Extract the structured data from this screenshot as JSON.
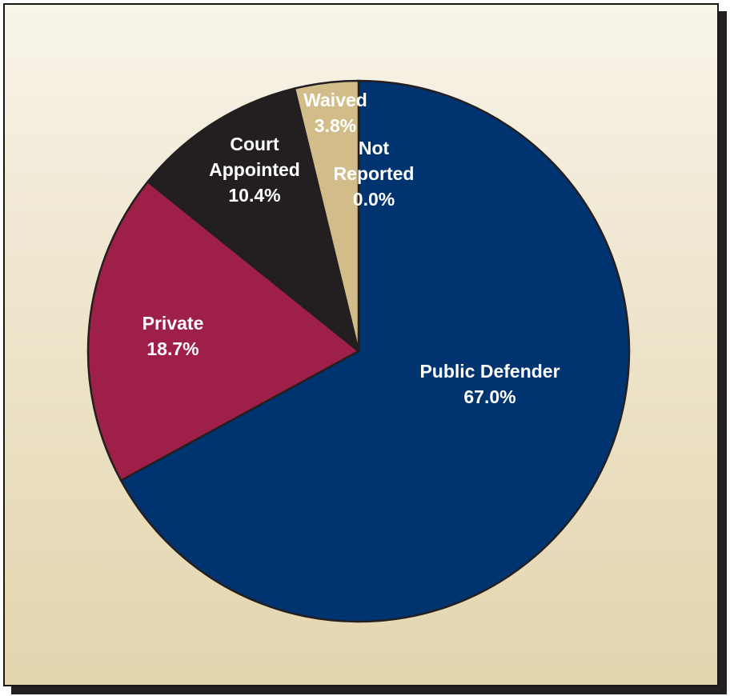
{
  "chart_data": {
    "type": "pie",
    "title": "",
    "slices": [
      {
        "label_lines": [
          "Public Defender"
        ],
        "pct_text": "67.0%",
        "value": 67.0,
        "color": "#003471"
      },
      {
        "label_lines": [
          "Private"
        ],
        "pct_text": "18.7%",
        "value": 18.7,
        "color": "#9e1f48"
      },
      {
        "label_lines": [
          "Court",
          "Appointed"
        ],
        "pct_text": "10.4%",
        "value": 10.4,
        "color": "#231f20"
      },
      {
        "label_lines": [
          "Waived"
        ],
        "pct_text": "3.8%",
        "value": 3.8,
        "color": "#d2bc89"
      },
      {
        "label_lines": [
          "Not",
          "Reported"
        ],
        "pct_text": "0.0%",
        "value": 0.0,
        "color": "#d2bc89"
      }
    ]
  }
}
